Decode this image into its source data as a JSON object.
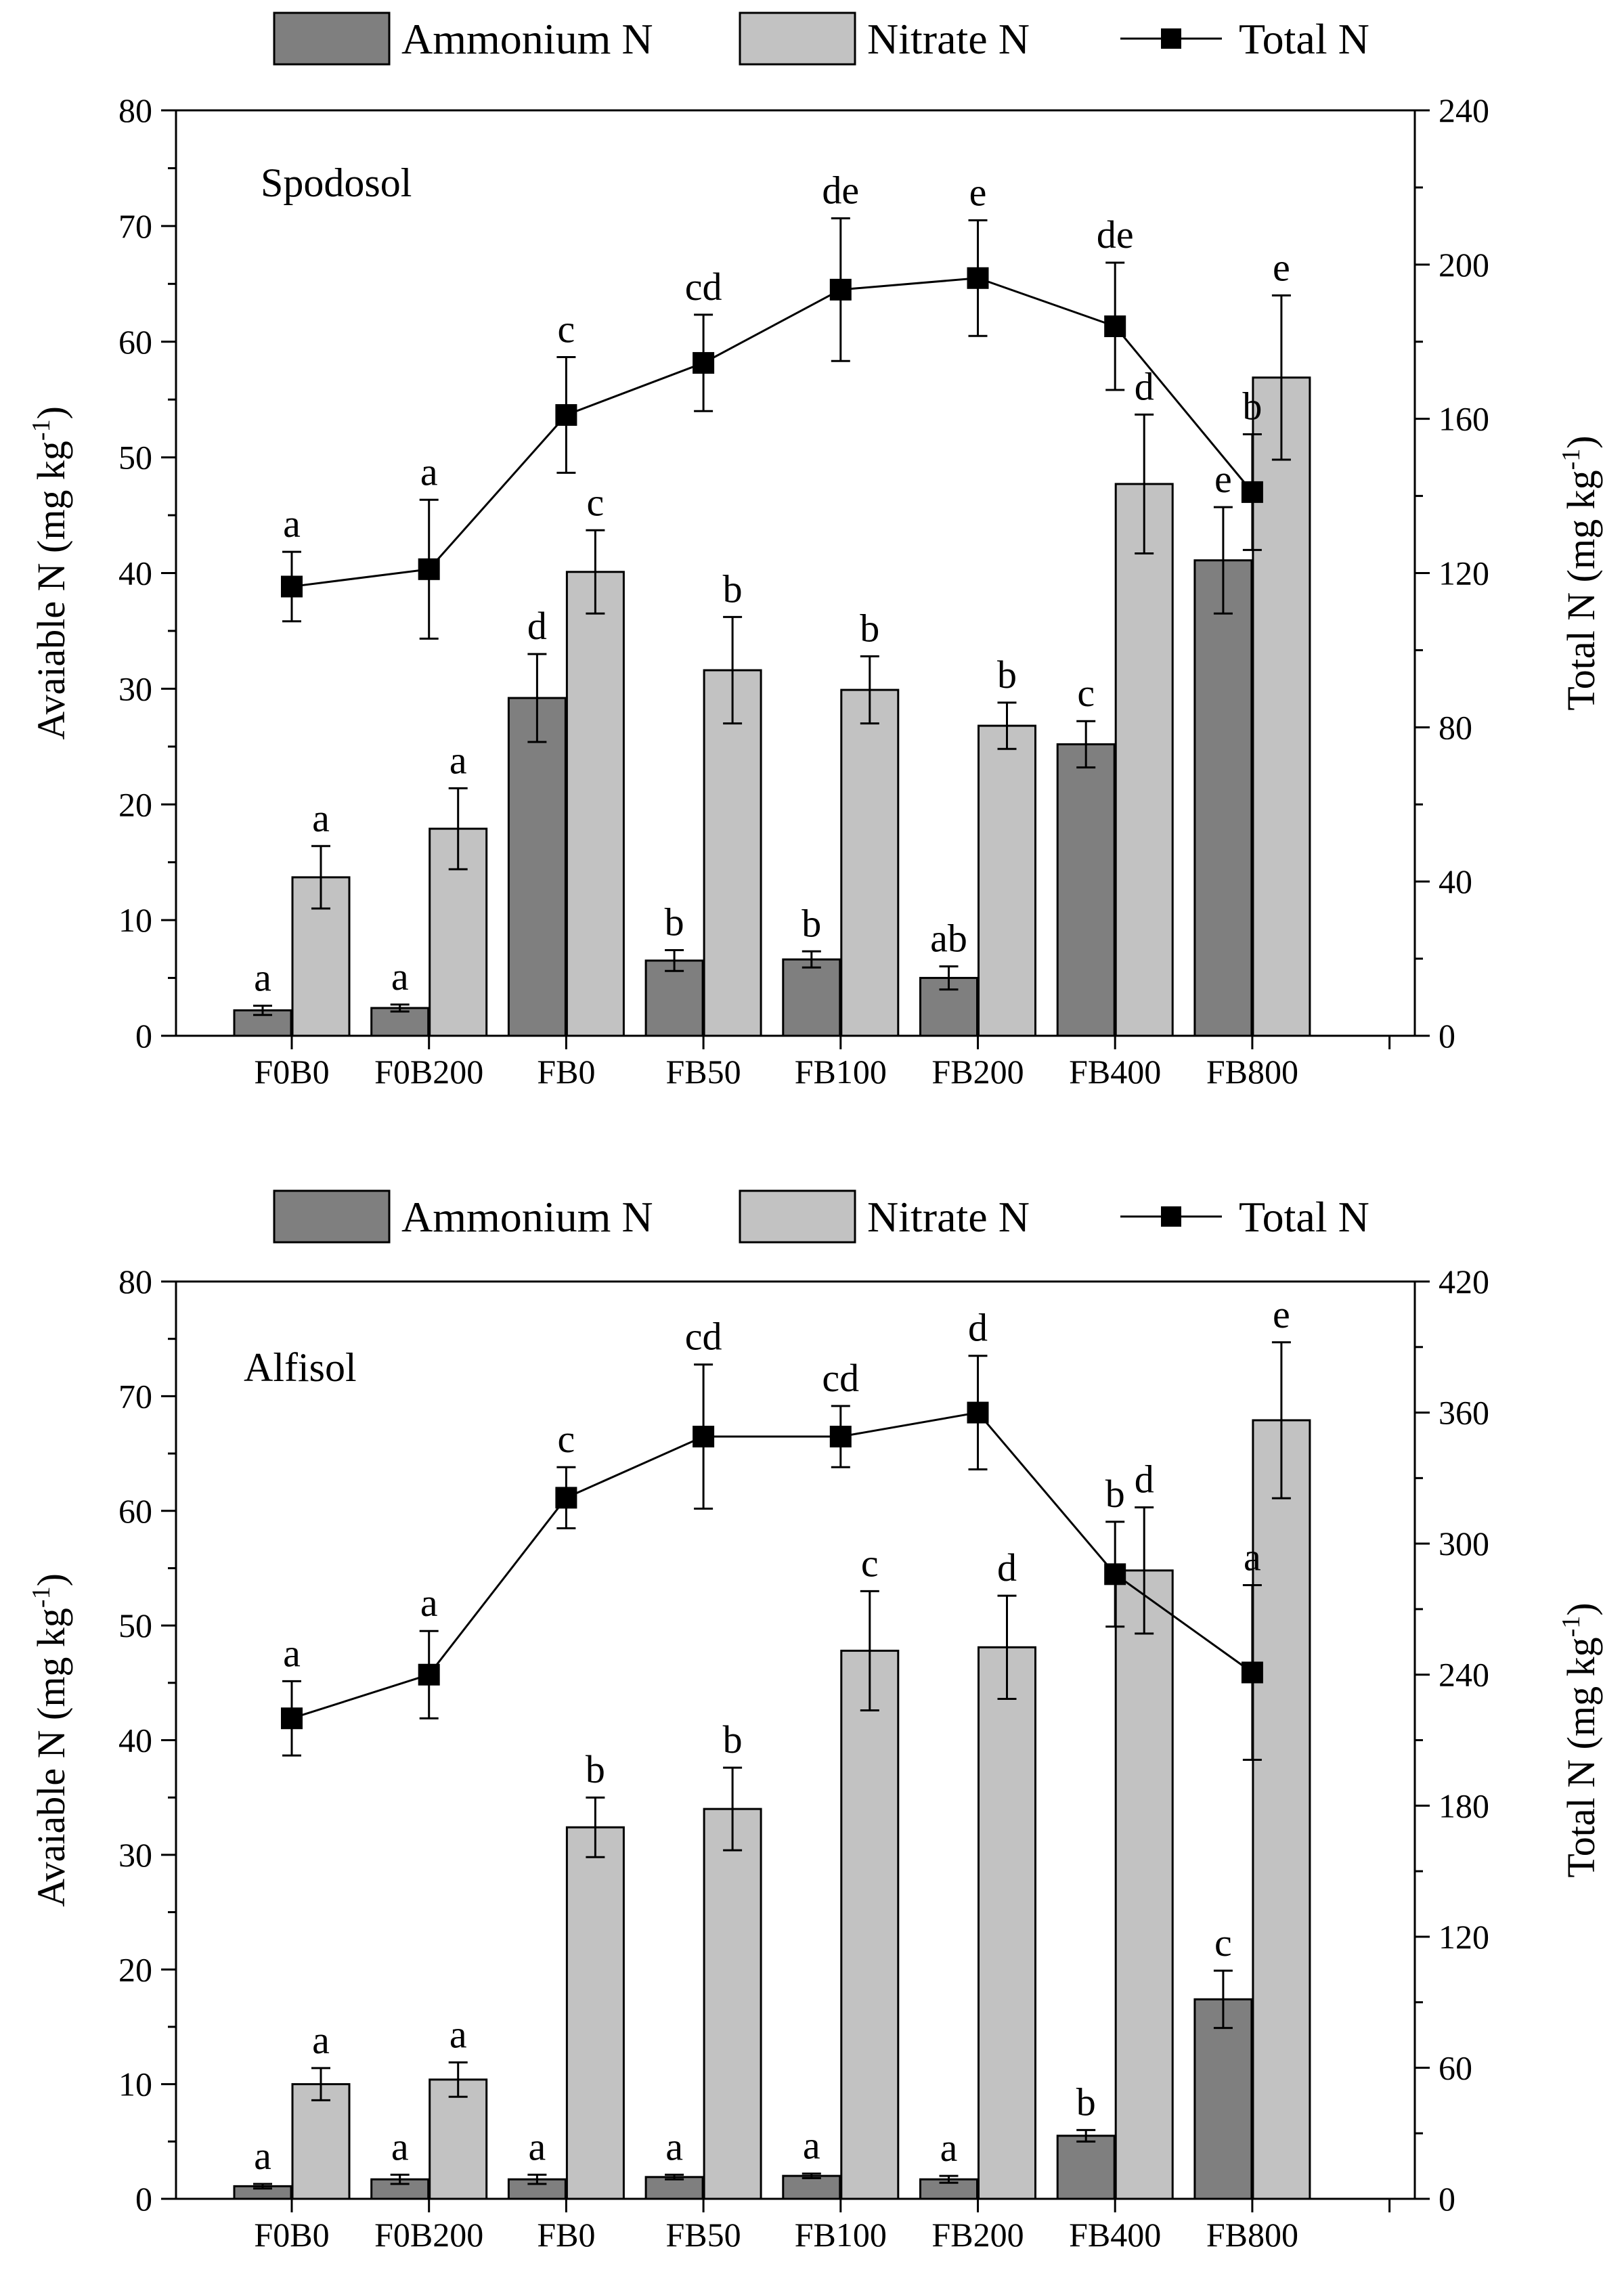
{
  "chart_data": [
    {
      "type": "bar",
      "panel_label": "Spodosol",
      "categories": [
        "F0B0",
        "F0B200",
        "FB0",
        "FB50",
        "FB100",
        "FB200",
        "FB400",
        "FB800"
      ],
      "legend": {
        "ammonium": "Ammonium N",
        "nitrate": "Nitrate N",
        "total": "Total N"
      },
      "ylabel_left": "Avaiable N (mg kg",
      "ylabel_right": "Total N (mg kg",
      "unit_superscript": "-1",
      "unit_close": ")",
      "ylim_left": [
        0,
        80
      ],
      "yticks_left": [
        0,
        10,
        20,
        30,
        40,
        50,
        60,
        70,
        80
      ],
      "ylim_right": [
        0,
        240
      ],
      "yticks_right": [
        0,
        40,
        80,
        120,
        160,
        200,
        240
      ],
      "series": [
        {
          "name": "Ammonium N",
          "axis": "left",
          "values": [
            2.2,
            2.4,
            29.2,
            6.5,
            6.6,
            5.0,
            25.2,
            41.1
          ],
          "errors": [
            0.4,
            0.3,
            3.8,
            0.9,
            0.7,
            1.0,
            2.0,
            4.6
          ],
          "letters": [
            "a",
            "a",
            "d",
            "b",
            "b",
            "ab",
            "c",
            "e"
          ]
        },
        {
          "name": "Nitrate N",
          "axis": "left",
          "values": [
            13.7,
            17.9,
            40.1,
            31.6,
            29.9,
            26.8,
            47.7,
            56.9
          ],
          "errors": [
            2.7,
            3.5,
            3.6,
            4.6,
            2.9,
            2.0,
            6.0,
            7.1
          ],
          "letters": [
            "a",
            "a",
            "c",
            "b",
            "b",
            "b",
            "d",
            "e"
          ]
        },
        {
          "name": "Total N",
          "axis": "right",
          "values": [
            116.5,
            121.0,
            161.0,
            174.5,
            193.5,
            196.5,
            184.0,
            141.0
          ],
          "errors": [
            9.0,
            18.0,
            15.0,
            12.5,
            18.5,
            15.0,
            16.5,
            15.0
          ],
          "letters": [
            "a",
            "a",
            "c",
            "cd",
            "de",
            "e",
            "de",
            "b"
          ]
        }
      ]
    },
    {
      "type": "bar",
      "panel_label": "Alfisol",
      "categories": [
        "F0B0",
        "F0B200",
        "FB0",
        "FB50",
        "FB100",
        "FB200",
        "FB400",
        "FB800"
      ],
      "legend": {
        "ammonium": "Ammonium N",
        "nitrate": "Nitrate N",
        "total": "Total N"
      },
      "ylabel_left": "Avaiable N (mg kg",
      "ylabel_right": "Total N (mg kg",
      "unit_superscript": "-1",
      "unit_close": ")",
      "ylim_left": [
        0,
        80
      ],
      "yticks_left": [
        0,
        10,
        20,
        30,
        40,
        50,
        60,
        70,
        80
      ],
      "ylim_right": [
        0,
        420
      ],
      "yticks_right": [
        0,
        60,
        120,
        180,
        240,
        300,
        360,
        420
      ],
      "series": [
        {
          "name": "Ammonium N",
          "axis": "left",
          "values": [
            1.1,
            1.7,
            1.7,
            1.9,
            2.0,
            1.7,
            5.5,
            17.4
          ],
          "errors": [
            0.2,
            0.4,
            0.4,
            0.2,
            0.2,
            0.3,
            0.5,
            2.5
          ],
          "letters": [
            "a",
            "a",
            "a",
            "a",
            "a",
            "a",
            "b",
            "c"
          ]
        },
        {
          "name": "Nitrate N",
          "axis": "left",
          "values": [
            10.0,
            10.4,
            32.4,
            34.0,
            47.8,
            48.1,
            54.8,
            67.9
          ],
          "errors": [
            1.4,
            1.5,
            2.6,
            3.6,
            5.2,
            4.5,
            5.5,
            6.8
          ],
          "letters": [
            "a",
            "a",
            "b",
            "b",
            "c",
            "d",
            "d",
            "e"
          ]
        },
        {
          "name": "Total N",
          "axis": "right",
          "values": [
            220,
            240,
            321,
            349,
            349,
            360,
            286,
            241
          ],
          "errors": [
            17,
            20,
            14,
            33,
            14,
            26,
            24,
            40
          ],
          "letters": [
            "a",
            "a",
            "c",
            "cd",
            "cd",
            "d",
            "b",
            "a"
          ]
        }
      ]
    }
  ]
}
